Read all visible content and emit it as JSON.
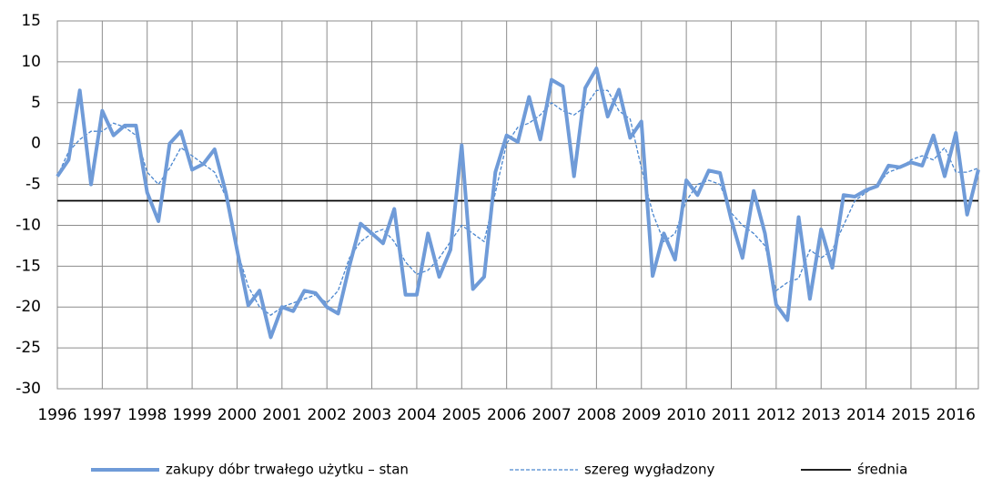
{
  "chart_data": {
    "type": "line",
    "x": [
      1996,
      1996.25,
      1996.5,
      1996.75,
      1997,
      1997.25,
      1997.5,
      1997.75,
      1998,
      1998.25,
      1998.5,
      1998.75,
      1999,
      1999.25,
      1999.5,
      1999.75,
      2000,
      2000.25,
      2000.5,
      2000.75,
      2001,
      2001.25,
      2001.5,
      2001.75,
      2002,
      2002.25,
      2002.5,
      2002.75,
      2003,
      2003.25,
      2003.5,
      2003.75,
      2004,
      2004.25,
      2004.5,
      2004.75,
      2005,
      2005.25,
      2005.5,
      2005.75,
      2006,
      2006.25,
      2006.5,
      2006.75,
      2007,
      2007.25,
      2007.5,
      2007.75,
      2008,
      2008.25,
      2008.5,
      2008.75,
      2009,
      2009.25,
      2009.5,
      2009.75,
      2010,
      2010.25,
      2010.5,
      2010.75,
      2011,
      2011.25,
      2011.5,
      2011.75,
      2012,
      2012.25,
      2012.5,
      2012.75,
      2013,
      2013.25,
      2013.5,
      2013.75,
      2014,
      2014.25,
      2014.5,
      2014.75,
      2015,
      2015.25,
      2015.5,
      2015.75,
      2016,
      2016.25,
      2016.5
    ],
    "series": [
      {
        "name": "zakupy dóbr trwałego użytku – stan",
        "color": "#6f9bd8",
        "style": "solid",
        "width": 4,
        "values": [
          -4,
          -2,
          6.5,
          -5,
          4,
          1,
          2.2,
          2.2,
          -6,
          -9.5,
          0,
          1.5,
          -3.2,
          -2.5,
          -0.7,
          -6,
          -13,
          -19.8,
          -18,
          -23.7,
          -20,
          -20.5,
          -18,
          -18.3,
          -20,
          -20.8,
          -15,
          -9.8,
          -11,
          -12.2,
          -8,
          -18.5,
          -18.5,
          -11,
          -16.3,
          -13,
          -0.2,
          -17.8,
          -16.3,
          -3.5,
          1,
          0.2,
          5.7,
          0.5,
          7.8,
          7,
          -4,
          6.8,
          9.2,
          3.3,
          6.6,
          0.7,
          2.7,
          -16.2,
          -11,
          -14.2,
          -4.5,
          -6.3,
          -3.3,
          -3.6,
          -9.3,
          -14,
          -5.8,
          -11,
          -19.7,
          -21.6,
          -9,
          -19,
          -10.5,
          -15.2,
          -6.3,
          -6.5,
          -5.7,
          -5.2,
          -2.7,
          -2.9,
          -2.3,
          -2.7,
          1,
          -4,
          1.3,
          -8.7,
          -3.2
        ]
      },
      {
        "name": "szereg wygładzony",
        "color": "#4a86cf",
        "style": "dashed",
        "width": 1.3,
        "values": [
          -4,
          -1,
          0.5,
          1.5,
          1.5,
          2.5,
          2,
          1,
          -3.5,
          -5,
          -3,
          -0.5,
          -1.5,
          -2.5,
          -3.5,
          -6.5,
          -13,
          -17.5,
          -20,
          -21,
          -20,
          -19.5,
          -19,
          -18.5,
          -19.5,
          -18,
          -14,
          -12,
          -11,
          -10.5,
          -12,
          -14.5,
          -16,
          -15.5,
          -14,
          -12,
          -10,
          -11,
          -12,
          -6,
          0,
          2,
          2.5,
          3.5,
          5,
          4,
          3.5,
          4.5,
          6.5,
          6.5,
          4,
          3,
          -3,
          -8.5,
          -12,
          -11,
          -7,
          -5,
          -4.5,
          -5,
          -8.5,
          -10,
          -11,
          -12.5,
          -18,
          -17,
          -16.5,
          -13,
          -14,
          -13,
          -10,
          -7,
          -6,
          -5,
          -3.5,
          -3,
          -2,
          -1.5,
          -2,
          -0.5,
          -3.5,
          -3.5,
          -3
        ]
      },
      {
        "name": "średnia",
        "color": "#000000",
        "style": "solid",
        "width": 1.8,
        "x": [
          1996,
          2016.5
        ],
        "values": [
          -7,
          -7
        ]
      }
    ],
    "xlim": [
      1996,
      2016.5
    ],
    "ylim": [
      -30,
      15
    ],
    "xticks": [
      1996,
      1997,
      1998,
      1999,
      2000,
      2001,
      2002,
      2003,
      2004,
      2005,
      2006,
      2007,
      2008,
      2009,
      2010,
      2011,
      2012,
      2013,
      2014,
      2015,
      2016
    ],
    "yticks": [
      15,
      10,
      5,
      0,
      -5,
      -10,
      -15,
      -20,
      -25,
      -30
    ],
    "grid": true,
    "legend": "bottom"
  }
}
